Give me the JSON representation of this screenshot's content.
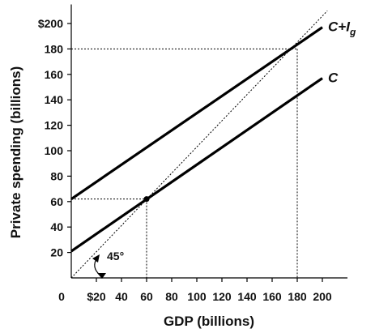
{
  "chart_data": {
    "type": "line",
    "title": "",
    "xlabel": "GDP (billions)",
    "ylabel": "Private spending (billions)",
    "xlim": [
      0,
      220
    ],
    "ylim": [
      0,
      215
    ],
    "x_ticks": [
      {
        "value": 0,
        "label": "0"
      },
      {
        "value": 20,
        "label": "$20"
      },
      {
        "value": 40,
        "label": "40"
      },
      {
        "value": 60,
        "label": "60"
      },
      {
        "value": 80,
        "label": "80"
      },
      {
        "value": 100,
        "label": "100"
      },
      {
        "value": 120,
        "label": "120"
      },
      {
        "value": 140,
        "label": "140"
      },
      {
        "value": 160,
        "label": "160"
      },
      {
        "value": 180,
        "label": "180"
      },
      {
        "value": 200,
        "label": "200"
      }
    ],
    "y_ticks": [
      {
        "value": 20,
        "label": "20"
      },
      {
        "value": 40,
        "label": "40"
      },
      {
        "value": 60,
        "label": "60"
      },
      {
        "value": 80,
        "label": "80"
      },
      {
        "value": 100,
        "label": "100"
      },
      {
        "value": 120,
        "label": "120"
      },
      {
        "value": 140,
        "label": "140"
      },
      {
        "value": 160,
        "label": "160"
      },
      {
        "value": 180,
        "label": "180"
      },
      {
        "value": 200,
        "label": "$200"
      }
    ],
    "series": [
      {
        "name": "C+Ig",
        "label_main": "C+I",
        "label_sub": "g",
        "points": [
          [
            0,
            62
          ],
          [
            200,
            197
          ]
        ],
        "color": "#000000"
      },
      {
        "name": "C",
        "label_main": "C",
        "label_sub": "",
        "points": [
          [
            0,
            21
          ],
          [
            200,
            157
          ]
        ],
        "color": "#000000"
      }
    ],
    "reference_line": {
      "points": [
        [
          0,
          0
        ],
        [
          204,
          210
        ]
      ],
      "style": "dotted"
    },
    "angle_annotation": "45°",
    "equilibrium_points": [
      {
        "x": 60,
        "y": 62
      },
      {
        "x": 180,
        "y": 180
      }
    ],
    "grid": false,
    "legend": "none"
  },
  "colors": {
    "background": "#ffffff",
    "ink": "#000000"
  }
}
